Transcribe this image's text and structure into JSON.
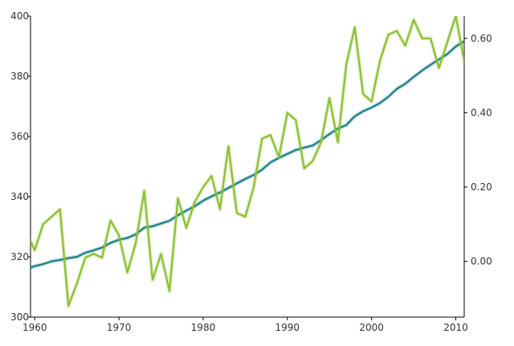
{
  "chart_data": {
    "type": "line",
    "title": "",
    "xlabel": "",
    "ylabel_left": "",
    "ylabel_right": "",
    "grid": false,
    "legend": "none",
    "xlim": [
      1959.5,
      2011
    ],
    "ylim_left": [
      300,
      400
    ],
    "ylim_right": [
      -0.15,
      0.66
    ],
    "x_ticks": [
      1960,
      1970,
      1980,
      1990,
      2000,
      2010
    ],
    "y_left_ticks": [
      300,
      320,
      340,
      360,
      380,
      400
    ],
    "y_right_ticks": [
      0.0,
      0.2,
      0.4,
      0.6
    ],
    "y_right_tick_labels": [
      "0.00",
      "0.20",
      "0.40",
      "0.60"
    ],
    "series": [
      {
        "axis": "left",
        "color": "#1a7f86",
        "x": [
          1959,
          1960,
          1961,
          1962,
          1963,
          1964,
          1965,
          1966,
          1967,
          1968,
          1969,
          1970,
          1971,
          1972,
          1973,
          1974,
          1975,
          1976,
          1977,
          1978,
          1979,
          1980,
          1981,
          1982,
          1983,
          1984,
          1985,
          1986,
          1987,
          1988,
          1989,
          1990,
          1991,
          1992,
          1993,
          1994,
          1995,
          1996,
          1997,
          1998,
          1999,
          2000,
          2001,
          2002,
          2003,
          2004,
          2005,
          2006,
          2007,
          2008,
          2009,
          2010,
          2011
        ],
        "values": [
          316.0,
          316.9,
          317.6,
          318.5,
          319.0,
          319.6,
          320.0,
          321.4,
          322.2,
          323.1,
          324.6,
          325.7,
          326.3,
          327.5,
          329.7,
          330.2,
          331.1,
          332.0,
          333.8,
          335.4,
          336.8,
          338.7,
          340.1,
          341.4,
          342.9,
          344.4,
          345.9,
          347.2,
          349.0,
          351.4,
          352.9,
          354.2,
          355.5,
          356.3,
          357.0,
          358.8,
          360.8,
          362.6,
          363.8,
          366.7,
          368.4,
          369.6,
          371.1,
          373.2,
          375.8,
          377.5,
          379.8,
          381.9,
          383.8,
          385.6,
          387.4,
          389.9,
          391.6
        ]
      },
      {
        "axis": "right",
        "color": "#8cc030",
        "x": [
          1959,
          1960,
          1961,
          1962,
          1963,
          1964,
          1965,
          1966,
          1967,
          1968,
          1969,
          1970,
          1971,
          1972,
          1973,
          1974,
          1975,
          1976,
          1977,
          1978,
          1979,
          1980,
          1981,
          1982,
          1983,
          1984,
          1985,
          1986,
          1987,
          1988,
          1989,
          1990,
          1991,
          1992,
          1993,
          1994,
          1995,
          1996,
          1997,
          1998,
          1999,
          2000,
          2001,
          2002,
          2003,
          2004,
          2005,
          2006,
          2007,
          2008,
          2009,
          2010,
          2011
        ],
        "values": [
          0.08,
          0.03,
          0.1,
          0.12,
          0.14,
          -0.12,
          -0.06,
          0.01,
          0.02,
          0.01,
          0.11,
          0.07,
          -0.03,
          0.05,
          0.19,
          -0.05,
          0.02,
          -0.08,
          0.17,
          0.09,
          0.16,
          0.2,
          0.23,
          0.14,
          0.31,
          0.13,
          0.12,
          0.2,
          0.33,
          0.34,
          0.28,
          0.4,
          0.38,
          0.25,
          0.27,
          0.32,
          0.44,
          0.32,
          0.53,
          0.63,
          0.45,
          0.43,
          0.54,
          0.61,
          0.62,
          0.58,
          0.65,
          0.6,
          0.6,
          0.52,
          0.59,
          0.66,
          0.54
        ]
      }
    ]
  }
}
